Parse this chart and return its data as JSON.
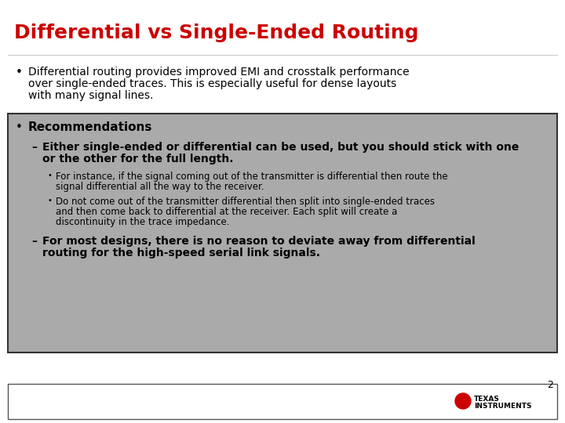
{
  "title": "Differential vs Single-Ended Routing",
  "title_color": "#CC0000",
  "title_fontsize": 18,
  "bg_color": "#FFFFFF",
  "bullet1_lines": [
    "Differential routing provides improved EMI and crosstalk performance",
    "over single-ended traces. This is especially useful for dense layouts",
    "with many signal lines."
  ],
  "bullet1_fontsize": 10,
  "box_bg": "#AAAAAA",
  "box_edge_color": "#333333",
  "rec_header": "Recommendations",
  "rec_header_fontsize": 11,
  "dash1_lines": [
    "Either single-ended or differential can be used, but you should stick with one",
    "or the other for the full length."
  ],
  "dash1_fontsize": 10,
  "sub1_lines": [
    "For instance, if the signal coming out of the transmitter is differential then route the",
    "signal differential all the way to the receiver."
  ],
  "sub2_lines": [
    "Do not come out of the transmitter differential then split into single-ended traces",
    "and then come back to differential at the receiver. Each split will create a",
    "discontinuity in the trace impedance."
  ],
  "sub_fontsize": 8.5,
  "dash2_lines": [
    "For most designs, there is no reason to deviate away from differential",
    "routing for the high-speed serial link signals."
  ],
  "dash2_fontsize": 10,
  "page_num": "2",
  "footer_box_color": "#FFFFFF",
  "footer_box_edge": "#555555",
  "ti_text": "Texas\nInstruments"
}
